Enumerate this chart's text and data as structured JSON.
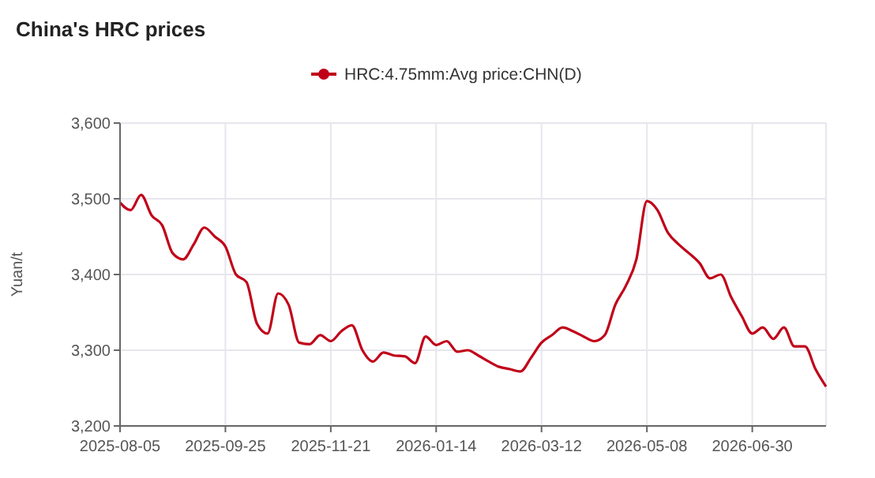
{
  "chart_data": {
    "type": "line",
    "title": "China's HRC prices",
    "ylabel": "Yuan/t",
    "categories": [
      "2025-08-05",
      null,
      null,
      null,
      null,
      null,
      null,
      null,
      null,
      null,
      "2025-09-25",
      null,
      null,
      null,
      null,
      null,
      null,
      null,
      null,
      null,
      "2025-11-21",
      null,
      null,
      null,
      null,
      null,
      null,
      null,
      null,
      null,
      "2026-01-14",
      null,
      null,
      null,
      null,
      null,
      null,
      null,
      null,
      null,
      "2026-03-12",
      null,
      null,
      null,
      null,
      null,
      null,
      null,
      null,
      null,
      "2026-05-08",
      null,
      null,
      null,
      null,
      null,
      null,
      null,
      null,
      null,
      "2026-06-30",
      null,
      null,
      null,
      null,
      null,
      null,
      null
    ],
    "series": [
      {
        "name": "HRC:4.75mm:Avg price:CHN(D)",
        "color": "#c00018",
        "values": [
          3495,
          3485,
          3505,
          3478,
          3465,
          3428,
          3420,
          3440,
          3462,
          3450,
          3437,
          3400,
          3390,
          3335,
          3322,
          3375,
          3360,
          3310,
          3308,
          3320,
          3312,
          3325,
          3333,
          3300,
          3285,
          3297,
          3293,
          3292,
          3283,
          3318,
          3307,
          3312,
          3298,
          3300,
          3293,
          3285,
          3278,
          3275,
          3272,
          3290,
          3310,
          3320,
          3330,
          3325,
          3318,
          3312,
          3320,
          3360,
          3385,
          3420,
          3497,
          3485,
          3455,
          3440,
          3428,
          3415,
          3395,
          3400,
          3370,
          3345,
          3322,
          3330,
          3315,
          3330,
          3305,
          3305,
          3275,
          3252
        ]
      }
    ],
    "ylim": [
      3200,
      3600
    ],
    "yticks": [
      {
        "value": 3200,
        "label": "3,200"
      },
      {
        "value": 3300,
        "label": "3,300"
      },
      {
        "value": 3400,
        "label": "3,400"
      },
      {
        "value": 3500,
        "label": "3,500"
      },
      {
        "value": 3600,
        "label": "3,600"
      }
    ],
    "grid": true,
    "legend": "top",
    "marker": "none",
    "line_style": "solid"
  }
}
